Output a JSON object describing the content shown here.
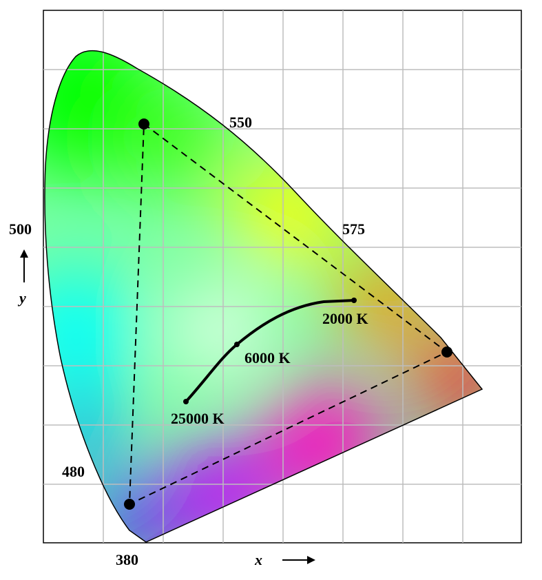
{
  "wavelength_labels": [
    "550",
    "575",
    "500",
    "480",
    "380"
  ],
  "temperature_labels": [
    "2000 K",
    "6000 K",
    "25000 K"
  ],
  "axis_labels": {
    "x": "x",
    "y": "y"
  }
}
